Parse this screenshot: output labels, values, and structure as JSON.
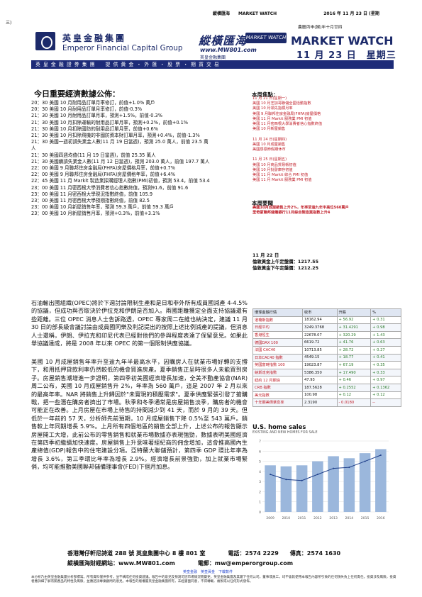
{
  "header": {
    "top_line": "縱橫匯海　　MARKET WATCH　　　　　　　　　　　2016 年 11 月 23 日 (星期",
    "page_num": "三)",
    "lunar_date": "農曆丙申(猴)年十月廿四",
    "company_cn": "英皇金融集團",
    "company_en": "Emperor Financial Capital Group",
    "banner": "英 皇 金 融 證 券 集 團 　 提 供 黃 金 ・ 外 匯 ・ 股 票 ・ 期 貨 交 易",
    "brand_cn": "縱橫匯海",
    "brand_badge": "MARKET WATCH",
    "brand_url": "www.MW801.com",
    "brand_sub": "英皇金融集團",
    "mw_title": "MARKET WATCH",
    "mw_date": "11 月 23 日　星期三"
  },
  "indicators": {
    "title": "今日重要經濟數據公佈：",
    "items": [
      "20：30  美國 10 月耐用品訂單月率修訂，前值+1.0% 萬戶",
      "20：30  美國 10 月耐用品訂單月率修訂，前值-0.3%",
      "21：30  美國 10 月耐用品訂單月率，預測+1.5%，前值-0.3%",
      "21：30  美國 10 月扣除運輸的耐用品訂單月率，預測+0.2%，前值+0.1%",
      "21：30  美國 10 月扣除國防的耐用品訂單月率，前值+0.6%",
      "21：30  美國 10 月扣除飛機的非國防資本財訂單月率，預測+0.4%，前值-1.3%",
      "21：30  美國一週初請失業金人數(11 月 19 日當週)，預測 25.0 萬人，前值 23.5 萬",
      "人",
      "21：30  美國四週均值(11 月 19 日當週)，前值 25.35 萬人",
      "21：30  美國續請失業金人數(11 月 12 日當週)，預測 203.0 萬人，前值 197.7 萬人",
      "22：00  美國 9 月聯邦住房金融局(FHFA)房屋價格月率，前值+0.7%",
      "22：00  美國 9 月聯邦住房金融局(FHFA)房屋價格年率，前值+6.4%",
      "22：45  美國 11 月 Markit 製造業採購經理人指數(PMI)初值，預測 53.4，前值 53.4",
      "23：00  美國 11 月密西根大學消費者信心指數終值，預測91.6，前值 91.6",
      "23：00  美國 11 月密西根大學現況指數終值，前值 105.9",
      "23：00  美國 11 月密西根大學預期指數終值，前值 82.5",
      "23：00  美國 10 月新屋銷售年率，預測 59.3 萬戶，前值 59.3 萬戶",
      "23：00  美國 10 月新屋銷售月率，預測+0.3%，前值+3.1%"
    ]
  },
  "article": {
    "p1": "石油輸出國組織(OPEC)將於下週討論限制生產和是日和非外所有成員國減產 4-4.5%的協議，但成功與否取決於伊拉克和伊朗是否加入。兩國距離獲定全面支持協議還有些距離。三位 OPEC 消息人士告訴路透，OPEC 專家周二在維也納決定，建議 11 月 30 日的部長級會議討論由成員國同樂及利記提出的按照上述比例減產的提議，但消息人士還稱，伊朗、伊拉克和印尼代表已經對他們的參與程度表達了保留意見。如果此舉協議達成，將是 2008 年以來 OPEC 的第一個限制供應協議。",
    "p2": "美國 10 月成屋銷售年率升至逾九年半最高水平，因購房人在就業市場好轉的支撐下，和用抵押貸款利率仍然較低的機會買進房產。夏季銷售正呈時很多人未能買到房子。房屋銷售潮增進一步證明，第四季初美國經濟增長加速，全美不動產協會(NAR)周二公布，美國 10 月成屋銷售升 2%，年率為 560 萬戶，這是 2007 年 2 月以來的最高年率。NAR 將銷售上升歸因於\"未實現的積壓需求\"。夏季供應緊張引發了搶購戰，把一些潛在購房者擠出了市場。秋季和冬季通常是房屋銷售淡季，購房者的機會可能正在改善。上月房屋在市場上待售的持間減少到 41 天，而於 9 月的 39 天。但低於一年前的 57 天，分析師先前預期，10 月成屋銷售下降 0.5%至 543 萬戶。銷售較上年同期增長 5.9%。上月所有四個地區的銷售全部上升，上述公布的報告顯示房屋開工大增，此前公布的零售銷售和就業市場數據亦表現強勁，數據表明美國經濟在第四季初繼續加快速度。房屋銷售上升意味著經紀商的佣金增加，這會推高國內生產總值(GDP)報告中的住宅建設分項。亞特蘭大聯儲預計，第四季 GDP 環比年率為增長 3.6%，第三季環比年率為增長 2.9%。經濟增長前景強勁，加上就業市場緊俏，均可能推動美國聯邦儲備理事會(FED)下個月加息。"
  },
  "focus": {
    "title": "本周焦點：",
    "items": [
      "11 月 21 日(星期一)",
      "美國 10 月芝加哥聯儲全國活動指數",
      "美國 10 月領先指標月率",
      "美國 9 月聯邦住房金融局(FHFA)房屋價格",
      "美國 11 月 Markit 服務業 PMI 初值",
      "美國 11 月密西根大學消費者信心指數終值",
      "美國 10 月新屋銷售",
      "",
      "11 月 24 日(星期四)",
      "美國 10 月成屋銷售",
      "美國感恩節假期休市",
      "",
      "11 月 25 日(星期五)",
      "美國 10 月商品貿易帳初值",
      "美國 10 月批發庫存初值",
      "美國 11 月 Markit 綜合 PMI 初值",
      "美國 11 月 Markit 服務業 PMI 初值"
    ]
  },
  "watch": {
    "title": "本周要聞",
    "lines": [
      "美國10月成屋銷售上升2%，年率至逾九年半高位560萬戶",
      "里奇蒙聯邦儲備銀行11月綜合製造業指數上升4"
    ]
  },
  "gold": {
    "date": "11 月 22 日",
    "lines": [
      "倫敦黃金上午定盤價：1217.55",
      "倫敦黃金下午定盤價：1212.25"
    ]
  },
  "market_table": {
    "headers": [
      "環球金融行情",
      "收市",
      "升跌",
      "%"
    ],
    "rows": [
      [
        "道瓊斯指數",
        "18162.94",
        "+ 56.92",
        "+ 0.31"
      ],
      [
        "日經平均",
        "3249.3768",
        "+ 31.4291",
        "+ 0.98"
      ],
      [
        "香港恒生",
        "22678.07",
        "+ 320.29",
        "+ 1.43"
      ],
      [
        "德國DAX 100",
        "6619.72",
        "+ 41.76",
        "+ 0.63"
      ],
      [
        "法國 CAC40",
        "10713.85",
        "+ 28.72",
        "+ 0.27"
      ],
      [
        "日本CAC40 指數",
        "4549.15",
        "+ 18.77",
        "+ 0.41"
      ],
      [
        "英國富時指數 100",
        "19023.87",
        "+ 67.19",
        "+ 0.35"
      ],
      [
        "納斯達克指數",
        "5386.350",
        "+ 17.490",
        "+ 0.33"
      ],
      [
        "紐約 12 月期油",
        "47.93",
        "+ 0.46",
        "+ 0.97"
      ],
      [
        "CRB 指數",
        "187.5628",
        "+ 0.2552",
        "+ 0.1362"
      ],
      [
        "美元指數",
        "100.98",
        "+ 0.12",
        "+ 0.12"
      ],
      [
        "十年期美債孳息率",
        "2.3190",
        "- 0.0180",
        "--"
      ]
    ]
  },
  "chart_data": {
    "type": "bar",
    "title": "U.S. home sales",
    "subtitle": "EXISTING AND NEW HOMES FOR SALE",
    "categories": [
      "2009",
      "2010",
      "2011",
      "2012",
      "2013",
      "2014",
      "2015",
      "2016"
    ],
    "values": [
      4.6,
      4.5,
      4.6,
      5.0,
      5.5,
      5.3,
      5.8,
      6.2
    ],
    "series": [
      {
        "values": [
          4.6,
          4.5,
          4.6,
          5.0,
          5.5,
          5.3,
          5.8,
          6.2
        ]
      },
      {
        "values": [
          0.37,
          0.32,
          0.31,
          0.37,
          0.43,
          0.44,
          0.5,
          0.56
        ]
      }
    ],
    "ylim": [
      0,
      7
    ],
    "colors": {
      "bar": "#9bb7dc",
      "line": "#1f3f8a"
    }
  },
  "footer": {
    "line1": "香港灣仔軒尼詩道 288 號  英皇集團中心 8 樓 801 室　　　　電話：2574 2229　　傳真：2574 1630",
    "line2": "縱橫匯海財經網站：www.MW801.com　　　　電郵：mw@emperorgroup.com",
    "links": "英皇金融　英皇黃金　下載軟件",
    "disclaimer": "本分析乃由英皇金融集團分析部撰寫。所有資料僅供參考，並不構成任何投資建議。報告中的意見及預測可因市場情況而變更，英皇金融集團及其屬下任何公司，董事或員工，均不會就使用本報告內容所引致的任何損失負上任何責任。投資涉及風險，投資者應詳細了解有關產品的特性及風險，並應諮詢專業顧問的意見。本報告的版權屬英皇金融集團所有，未經書面同意，不得轉載、複製或以任何形式發佈。"
  }
}
